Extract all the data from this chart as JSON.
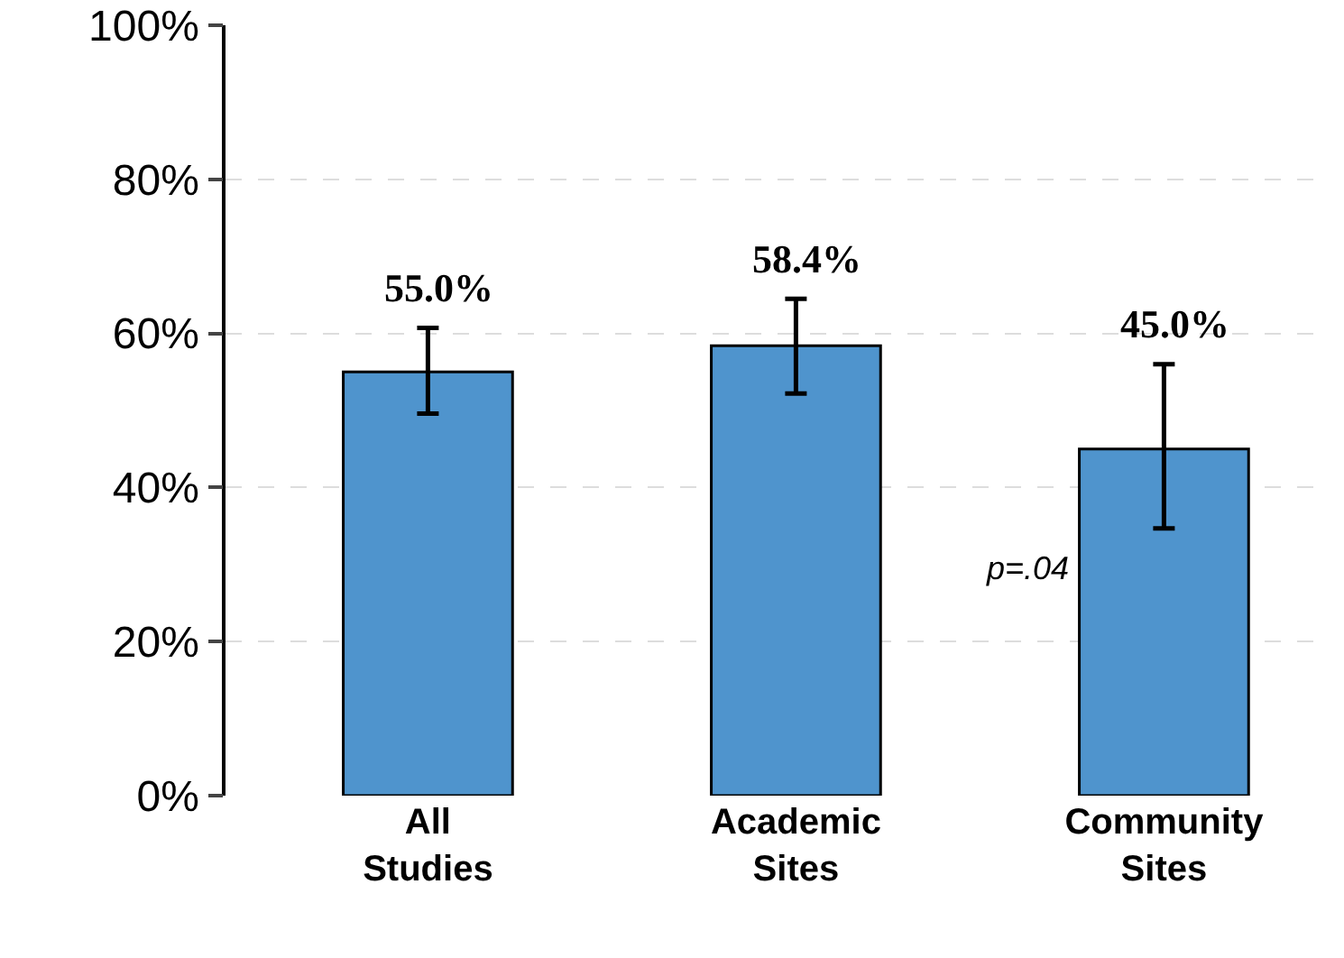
{
  "chart_data": {
    "type": "bar",
    "categories": [
      "All Studies",
      "Academic Sites",
      "Community Sites"
    ],
    "values": [
      55.0,
      58.4,
      45.0
    ],
    "value_labels": [
      "55.0%",
      "58.4%",
      "45.0%"
    ],
    "errors": [
      [
        49.6,
        60.7
      ],
      [
        52.2,
        64.5
      ],
      [
        34.7,
        56.0
      ]
    ],
    "color": "#4f94cd",
    "ylim": [
      0,
      100
    ],
    "yticks": [
      {
        "value": 0,
        "label": "0%"
      },
      {
        "value": 20,
        "label": "20%"
      },
      {
        "value": 40,
        "label": "40%"
      },
      {
        "value": 60,
        "label": "60%"
      },
      {
        "value": 80,
        "label": "80%"
      },
      {
        "value": 100,
        "label": "100%"
      }
    ],
    "grid": "y",
    "annotations": [
      "p=.04"
    ]
  }
}
